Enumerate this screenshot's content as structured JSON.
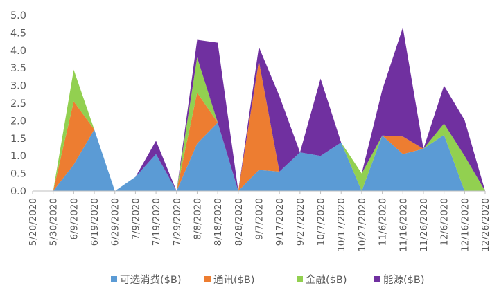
{
  "chart_data": {
    "type": "area",
    "stacked": true,
    "title": "",
    "xlabel": "",
    "ylabel": "",
    "ylim": [
      0,
      5.0
    ],
    "y_ticks": [
      "0.0",
      "0.5",
      "1.0",
      "1.5",
      "2.0",
      "2.5",
      "3.0",
      "3.5",
      "4.0",
      "4.5",
      "5.0"
    ],
    "grid": false,
    "legend_position": "bottom",
    "x_tick_labels": [
      "5/20/2020",
      "5/30/2020",
      "6/9/2020",
      "6/19/2020",
      "6/29/2020",
      "7/9/2020",
      "7/19/2020",
      "7/29/2020",
      "8/8/2020",
      "8/18/2020",
      "8/28/2020",
      "9/7/2020",
      "9/17/2020",
      "9/27/2020",
      "10/7/2020",
      "10/17/2020",
      "10/27/2020",
      "11/6/2020",
      "11/16/2020",
      "11/26/2020",
      "12/6/2020",
      "12/16/2020",
      "12/26/2020"
    ],
    "x": [
      "5/30/2020",
      "6/9/2020",
      "6/19/2020",
      "6/29/2020",
      "7/9/2020",
      "7/19/2020",
      "7/29/2020",
      "8/8/2020",
      "8/18/2020",
      "8/28/2020",
      "9/7/2020",
      "9/17/2020",
      "9/27/2020",
      "10/7/2020",
      "10/17/2020",
      "10/27/2020",
      "11/6/2020",
      "11/16/2020",
      "11/26/2020",
      "12/6/2020",
      "12/16/2020",
      "12/26/2020"
    ],
    "series": [
      {
        "name": "可选消费($B)",
        "color": "#5B9BD5",
        "values": [
          0,
          0.75,
          1.75,
          0,
          0.4,
          1.05,
          0,
          1.35,
          1.95,
          0,
          0.6,
          0.55,
          1.1,
          1.0,
          1.38,
          0,
          1.58,
          1.05,
          1.2,
          1.6,
          0,
          0
        ]
      },
      {
        "name": "通讯($B)",
        "color": "#ED7D31",
        "values": [
          0,
          1.8,
          0,
          0,
          0,
          0,
          0,
          1.45,
          0,
          0,
          3.1,
          0,
          0,
          0,
          0,
          0,
          0,
          0.5,
          0,
          0,
          0,
          0
        ]
      },
      {
        "name": "金融($B)",
        "color": "#92D050",
        "values": [
          0,
          0.9,
          0,
          0,
          0,
          0,
          0,
          1.0,
          0,
          0,
          0,
          0,
          0,
          0,
          0,
          0.5,
          0,
          0,
          0,
          0.32,
          1.0,
          0
        ]
      },
      {
        "name": "能源($B)",
        "color": "#7030A0",
        "values": [
          0,
          0,
          0,
          0,
          0,
          0.38,
          0,
          0.5,
          2.27,
          0,
          0.4,
          2.15,
          0,
          2.2,
          0,
          0,
          1.3,
          3.1,
          0,
          1.08,
          1.02,
          0
        ]
      }
    ]
  }
}
